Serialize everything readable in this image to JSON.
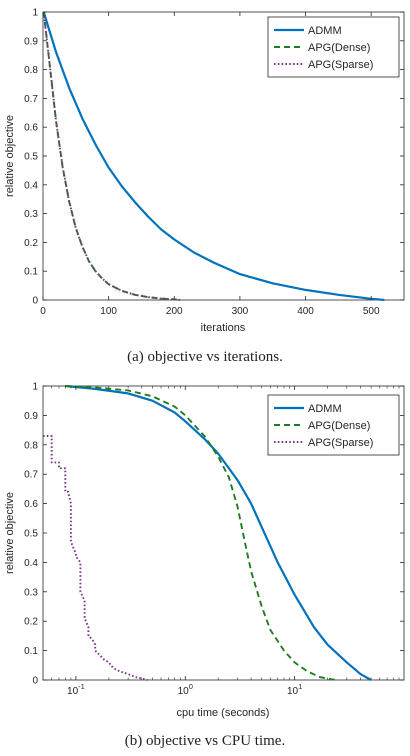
{
  "chart_data": [
    {
      "type": "line",
      "caption": "(a) objective vs iterations.",
      "xlabel": "iterations",
      "ylabel": "relative objective",
      "xlim": [
        0,
        550
      ],
      "ylim": [
        0,
        1
      ],
      "xscale": "linear",
      "xticks": [
        0,
        100,
        200,
        300,
        400,
        500
      ],
      "xtick_labels": [
        "0",
        "100",
        "200",
        "300",
        "400",
        "500"
      ],
      "yticks": [
        0,
        0.1,
        0.2,
        0.3,
        0.4,
        0.5,
        0.6,
        0.7,
        0.8,
        0.9,
        1
      ],
      "ytick_labels": [
        "0",
        "0.1",
        "0.2",
        "0.3",
        "0.4",
        "0.5",
        "0.6",
        "0.7",
        "0.8",
        "0.9",
        "1"
      ],
      "grid": false,
      "legend_position": "top-right",
      "series": [
        {
          "name": "ADMM",
          "color": "#0072bd",
          "style": "solid",
          "x": [
            1,
            20,
            40,
            60,
            80,
            100,
            120,
            140,
            160,
            180,
            200,
            230,
            260,
            300,
            350,
            400,
            450,
            500,
            520
          ],
          "y": [
            1.0,
            0.86,
            0.735,
            0.63,
            0.54,
            0.46,
            0.395,
            0.34,
            0.29,
            0.245,
            0.21,
            0.165,
            0.13,
            0.09,
            0.058,
            0.035,
            0.018,
            0.004,
            0.0
          ]
        },
        {
          "name": "APG(Dense)",
          "color": "#1e7d1e",
          "style": "dashed",
          "x": [
            1,
            10,
            20,
            30,
            40,
            50,
            60,
            70,
            80,
            90,
            100,
            120,
            140,
            160,
            180,
            200,
            210
          ],
          "y": [
            1.0,
            0.82,
            0.62,
            0.46,
            0.34,
            0.25,
            0.185,
            0.135,
            0.1,
            0.075,
            0.055,
            0.032,
            0.018,
            0.01,
            0.005,
            0.002,
            0.0
          ]
        },
        {
          "name": "APG(Sparse)",
          "color": "#7e2f8e",
          "style": "dotted",
          "x": [
            1,
            10,
            20,
            30,
            40,
            50,
            60,
            70,
            80,
            90,
            100,
            120,
            140,
            160,
            180,
            200,
            210
          ],
          "y": [
            1.0,
            0.82,
            0.62,
            0.46,
            0.34,
            0.25,
            0.185,
            0.135,
            0.1,
            0.075,
            0.055,
            0.032,
            0.018,
            0.01,
            0.005,
            0.002,
            0.0
          ]
        }
      ]
    },
    {
      "type": "line",
      "caption": "(b) objective vs CPU time.",
      "xlabel": "cpu time (seconds)",
      "ylabel": "relative objective",
      "xlim": [
        0.05,
        100
      ],
      "ylim": [
        0,
        1
      ],
      "xscale": "log",
      "xticks": [
        0.1,
        1,
        10
      ],
      "xtick_labels": [
        "10",
        "10",
        "10"
      ],
      "xtick_exponents": [
        "-1",
        "0",
        "1"
      ],
      "yticks": [
        0,
        0.1,
        0.2,
        0.3,
        0.4,
        0.5,
        0.6,
        0.7,
        0.8,
        0.9,
        1
      ],
      "ytick_labels": [
        "0",
        "0.1",
        "0.2",
        "0.3",
        "0.4",
        "0.5",
        "0.6",
        "0.7",
        "0.8",
        "0.9",
        "1"
      ],
      "grid": false,
      "legend_position": "top-right",
      "series": [
        {
          "name": "ADMM",
          "color": "#0072bd",
          "style": "solid",
          "x": [
            0.08,
            0.15,
            0.3,
            0.5,
            0.8,
            1.0,
            1.5,
            2.0,
            3.0,
            4.0,
            5.0,
            7.0,
            10.0,
            15.0,
            20.0,
            30.0,
            40.0,
            50.0
          ],
          "y": [
            1.0,
            0.99,
            0.975,
            0.95,
            0.91,
            0.88,
            0.82,
            0.77,
            0.68,
            0.6,
            0.52,
            0.4,
            0.29,
            0.18,
            0.12,
            0.06,
            0.02,
            0.0
          ]
        },
        {
          "name": "APG(Dense)",
          "color": "#1e7d1e",
          "style": "dashed",
          "x": [
            0.08,
            0.15,
            0.3,
            0.5,
            0.8,
            1.0,
            1.5,
            2.0,
            2.5,
            3.0,
            3.5,
            4.0,
            5.0,
            6.0,
            8.0,
            10.0,
            13.0,
            17.0,
            22.0,
            25.0
          ],
          "y": [
            1.0,
            0.995,
            0.985,
            0.965,
            0.93,
            0.9,
            0.83,
            0.76,
            0.69,
            0.59,
            0.47,
            0.37,
            0.25,
            0.17,
            0.1,
            0.06,
            0.03,
            0.01,
            0.002,
            0.0
          ]
        },
        {
          "name": "APG(Sparse)",
          "color": "#7e2f8e",
          "style": "dotted",
          "x": [
            0.05,
            0.06,
            0.06,
            0.07,
            0.07,
            0.08,
            0.08,
            0.085,
            0.09,
            0.09,
            0.1,
            0.1,
            0.11,
            0.11,
            0.12,
            0.12,
            0.13,
            0.13,
            0.14,
            0.15,
            0.15,
            0.17,
            0.18,
            0.2,
            0.22,
            0.25,
            0.3,
            0.35,
            0.4,
            0.45
          ],
          "y": [
            0.83,
            0.83,
            0.74,
            0.74,
            0.72,
            0.72,
            0.64,
            0.64,
            0.6,
            0.47,
            0.43,
            0.42,
            0.4,
            0.3,
            0.27,
            0.21,
            0.18,
            0.15,
            0.14,
            0.12,
            0.1,
            0.08,
            0.07,
            0.06,
            0.04,
            0.03,
            0.02,
            0.01,
            0.005,
            0.0
          ]
        }
      ]
    }
  ]
}
